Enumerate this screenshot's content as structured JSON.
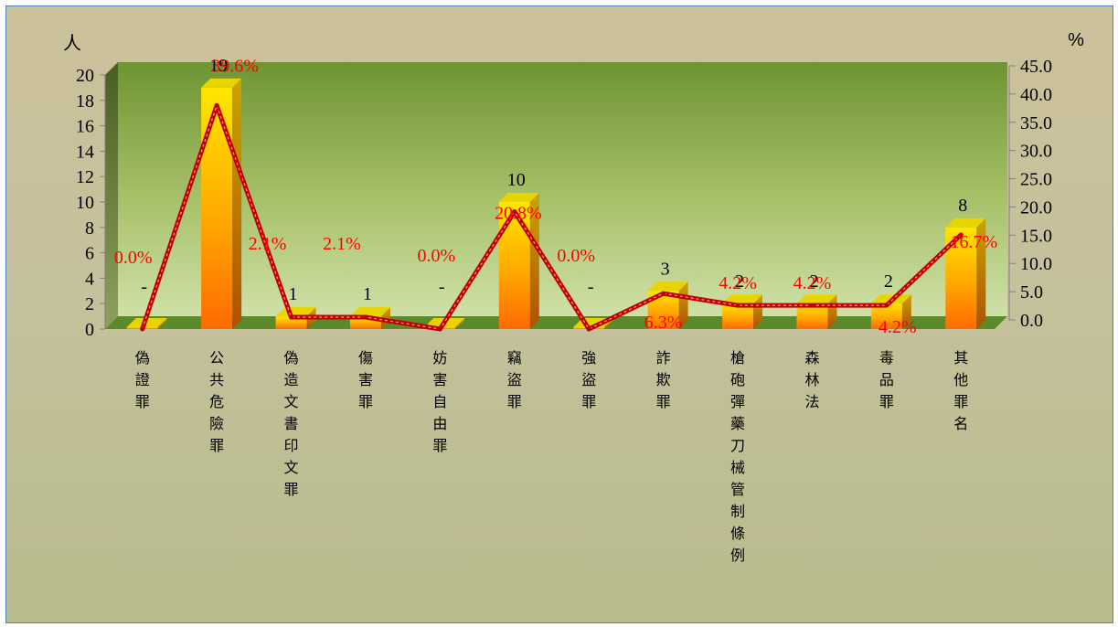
{
  "chart_data": {
    "type": "bar",
    "left_unit": "人",
    "right_unit": "%",
    "categories": [
      "偽證罪",
      "公共危險罪",
      "偽造文書印文罪",
      "傷害罪",
      "妨害自由罪",
      "竊盜罪",
      "強盜罪",
      "詐欺罪",
      "槍砲彈藥刀械管制條例",
      "森林法",
      "毒品罪",
      "其他罪名"
    ],
    "series": [
      {
        "values": [
          0,
          19,
          1,
          1,
          0,
          10,
          0,
          3,
          2,
          2,
          2,
          8
        ],
        "value_labels": [
          "-",
          "19",
          "1",
          "1",
          "-",
          "10",
          "-",
          "3",
          "2",
          "2",
          "2",
          "8"
        ],
        "color": "#ffa000"
      },
      {
        "values": [
          0.0,
          39.6,
          2.1,
          2.1,
          0.0,
          20.8,
          0.0,
          6.3,
          4.2,
          4.2,
          4.2,
          16.7
        ],
        "value_labels": [
          "0.0%",
          "39.6%",
          "2.1%",
          "2.1%",
          "0.0%",
          "20.8%",
          "0.0%",
          "6.3%",
          "4.2%",
          "4.2%",
          "4.2%",
          "16.7%"
        ],
        "color": "#c00000"
      }
    ],
    "y_left_ticks": [
      "0",
      "2",
      "4",
      "6",
      "8",
      "10",
      "12",
      "14",
      "16",
      "18",
      "20"
    ],
    "y_right_ticks": [
      "0.0",
      "5.0",
      "10.0",
      "15.0",
      "20.0",
      "25.0",
      "30.0",
      "35.0",
      "40.0",
      "45.0"
    ],
    "ylim_left": [
      0,
      20
    ],
    "ylim_right": [
      0,
      45
    ],
    "grid": false,
    "legend": "none"
  }
}
